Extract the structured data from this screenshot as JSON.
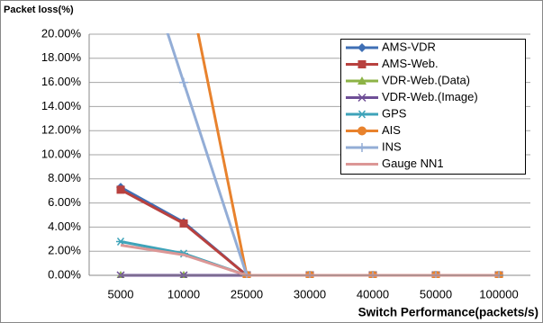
{
  "chart_data": {
    "type": "line",
    "y_label": "Packet loss(%)",
    "x_label": "Switch Performance(packets/s)",
    "categories": [
      "5000",
      "10000",
      "25000",
      "30000",
      "40000",
      "50000",
      "100000"
    ],
    "ylim": [
      0,
      20
    ],
    "yticks": [
      {
        "value": 0,
        "label": "0.00%"
      },
      {
        "value": 2,
        "label": "2.00%"
      },
      {
        "value": 4,
        "label": "4.00%"
      },
      {
        "value": 6,
        "label": "6.00%"
      },
      {
        "value": 8,
        "label": "8.00%"
      },
      {
        "value": 10,
        "label": "10.00%"
      },
      {
        "value": 12,
        "label": "12.00%"
      },
      {
        "value": 14,
        "label": "14.00%"
      },
      {
        "value": 16,
        "label": "16.00%"
      },
      {
        "value": 18,
        "label": "18.00%"
      },
      {
        "value": 20,
        "label": "20.00%"
      }
    ],
    "grid": true,
    "legend": "upper right",
    "series": [
      {
        "name": "AMS-VDR",
        "color": "#3f6fb5",
        "marker": "diamond",
        "values": [
          7.3,
          4.4,
          0,
          0,
          0,
          0,
          0
        ]
      },
      {
        "name": "AMS-Web.",
        "color": "#b8413f",
        "marker": "square",
        "values": [
          7.1,
          4.3,
          0,
          0,
          0,
          0,
          0
        ]
      },
      {
        "name": "VDR-Web.(Data)",
        "color": "#8db346",
        "marker": "triangle",
        "values": [
          0,
          0,
          0,
          0,
          0,
          0,
          0
        ]
      },
      {
        "name": "VDR-Web.(Image)",
        "color": "#6f4f97",
        "marker": "x",
        "values": [
          0,
          0,
          0,
          0,
          0,
          0,
          0
        ]
      },
      {
        "name": "GPS",
        "color": "#3ea3b9",
        "marker": "star",
        "values": [
          2.8,
          1.8,
          0,
          0,
          0,
          0,
          0
        ]
      },
      {
        "name": "AIS",
        "color": "#e8822d",
        "marker": "circle",
        "values": [
          null,
          26,
          0,
          0,
          0,
          0,
          0
        ]
      },
      {
        "name": "INS",
        "color": "#93add6",
        "marker": "plus",
        "values": [
          32,
          16,
          0,
          0,
          0,
          0,
          0
        ]
      },
      {
        "name": "Gauge NN1",
        "color": "#dc9796",
        "marker": "none",
        "values": [
          2.5,
          1.7,
          0,
          0,
          0,
          0,
          0
        ]
      }
    ]
  }
}
